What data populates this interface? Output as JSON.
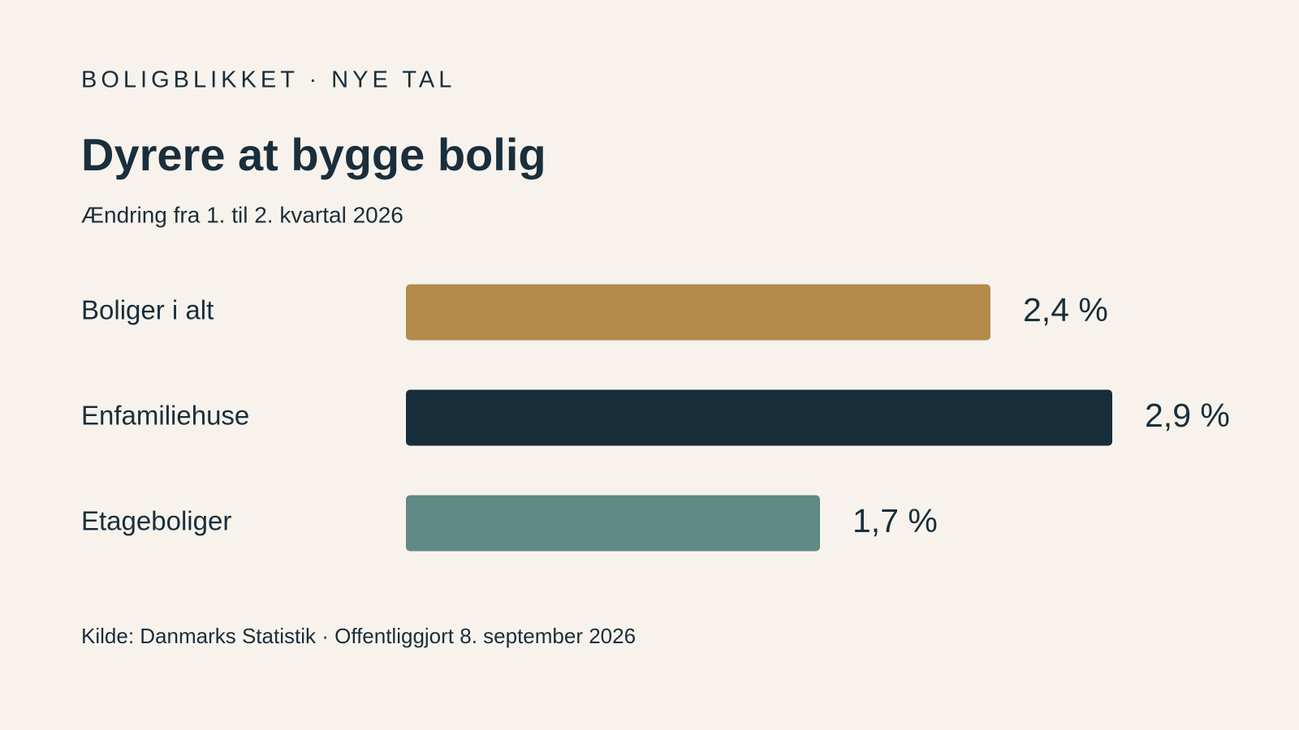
{
  "chart_data": {
    "type": "bar",
    "kicker": "BOLIGBLIKKET · NYE TAL",
    "title": "Dyrere at bygge bolig",
    "subtitle": "Ændring fra 1. til 2. kvartal 2026",
    "categories": [
      "Boliger i alt",
      "Enfamiliehuse",
      "Etageboliger"
    ],
    "values": [
      2.4,
      2.9,
      1.7
    ],
    "value_labels": [
      "2,4 %",
      "2,9 %",
      "1,7 %"
    ],
    "colors": [
      "#b38a4a",
      "#182d3a",
      "#618a84"
    ],
    "source": "Kilde: Danmarks Statistik · Offentliggjort 8. september 2026"
  }
}
